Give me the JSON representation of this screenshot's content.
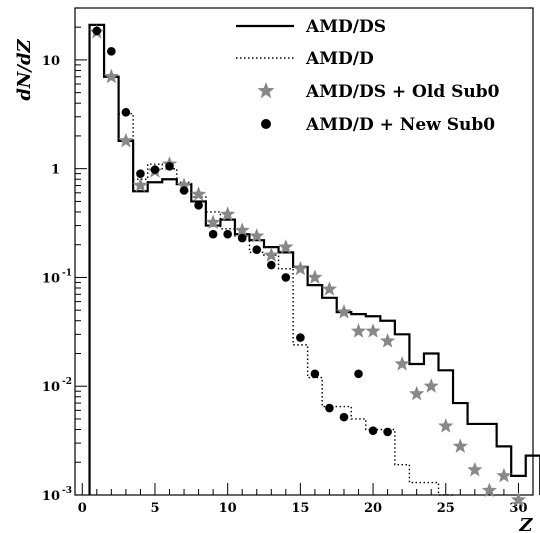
{
  "chart_data": {
    "type": "step-and-scatter",
    "title": "",
    "xlabel": "Z",
    "ylabel": "dN/dZ",
    "log_y": true,
    "xlim": [
      -0.5,
      31
    ],
    "ylim": [
      0.001,
      30
    ],
    "x_ticks": [
      0,
      5,
      10,
      15,
      20,
      25,
      30
    ],
    "y_ticks": [
      {
        "value": 0.001,
        "base": "10",
        "exp": "-3"
      },
      {
        "value": 0.01,
        "base": "10",
        "exp": "-2"
      },
      {
        "value": 0.1,
        "base": "10",
        "exp": "-1"
      },
      {
        "value": 1,
        "base": "1",
        "exp": ""
      },
      {
        "value": 10,
        "base": "10",
        "exp": ""
      }
    ],
    "legend_position": "top-right",
    "series": [
      {
        "name": "AMD/DS",
        "kind": "step-solid",
        "color": "#000000",
        "bins": [
          [
            0.5,
            21
          ],
          [
            1.5,
            7
          ],
          [
            2.5,
            1.8
          ],
          [
            3.5,
            0.62
          ],
          [
            4.5,
            0.75
          ],
          [
            5.5,
            0.8
          ],
          [
            6.5,
            0.72
          ],
          [
            7.5,
            0.5
          ],
          [
            8.5,
            0.3
          ],
          [
            9.5,
            0.34
          ],
          [
            10.5,
            0.25
          ],
          [
            11.5,
            0.22
          ],
          [
            12.5,
            0.19
          ],
          [
            13.5,
            0.17
          ],
          [
            14.5,
            0.125
          ],
          [
            15.5,
            0.085
          ],
          [
            16.5,
            0.065
          ],
          [
            17.5,
            0.048
          ],
          [
            18.5,
            0.046
          ],
          [
            19.5,
            0.044
          ],
          [
            20.5,
            0.04
          ],
          [
            21.5,
            0.03
          ],
          [
            22.5,
            0.016
          ],
          [
            23.5,
            0.02
          ],
          [
            24.5,
            0.014
          ],
          [
            25.5,
            0.007
          ],
          [
            26.5,
            0.0045
          ],
          [
            27.5,
            0.0045
          ],
          [
            28.5,
            0.0028
          ],
          [
            29.5,
            0.0015
          ],
          [
            30.5,
            0.0023
          ]
        ]
      },
      {
        "name": "AMD/D",
        "kind": "step-dotted",
        "color": "#000000",
        "bins": [
          [
            0.5,
            21
          ],
          [
            1.5,
            7
          ],
          [
            2.5,
            3.2
          ],
          [
            3.5,
            0.8
          ],
          [
            4.5,
            1.1
          ],
          [
            5.5,
            1.0
          ],
          [
            6.5,
            0.75
          ],
          [
            7.5,
            0.55
          ],
          [
            8.5,
            0.4
          ],
          [
            9.5,
            0.28
          ],
          [
            10.5,
            0.24
          ],
          [
            11.5,
            0.17
          ],
          [
            12.5,
            0.16
          ],
          [
            13.5,
            0.12
          ],
          [
            14.5,
            0.024
          ],
          [
            15.5,
            0.012
          ],
          [
            16.5,
            0.0065
          ],
          [
            17.5,
            0.0065
          ],
          [
            18.5,
            0.005
          ],
          [
            19.5,
            0.004
          ],
          [
            20.5,
            0.004
          ],
          [
            21.5,
            0.0019
          ],
          [
            22.5,
            0.0013
          ],
          [
            23.5,
            0.0013
          ],
          [
            24.5,
            0.001
          ]
        ]
      },
      {
        "name": "AMD/DS + Old Sub0",
        "kind": "marker-star",
        "color": "#888888",
        "points": [
          [
            1,
            18
          ],
          [
            2,
            7
          ],
          [
            3,
            1.8
          ],
          [
            4,
            0.7
          ],
          [
            5,
            0.95
          ],
          [
            6,
            1.1
          ],
          [
            7,
            0.7
          ],
          [
            8,
            0.58
          ],
          [
            9,
            0.32
          ],
          [
            10,
            0.38
          ],
          [
            11,
            0.27
          ],
          [
            12,
            0.24
          ],
          [
            13,
            0.16
          ],
          [
            14,
            0.19
          ],
          [
            15,
            0.12
          ],
          [
            16,
            0.1
          ],
          [
            17,
            0.078
          ],
          [
            18,
            0.048
          ],
          [
            19,
            0.032
          ],
          [
            20,
            0.032
          ],
          [
            21,
            0.026
          ],
          [
            22,
            0.016
          ],
          [
            23,
            0.0085
          ],
          [
            24,
            0.01
          ],
          [
            25,
            0.0043
          ],
          [
            26,
            0.0028
          ],
          [
            27,
            0.0017
          ],
          [
            28,
            0.0011
          ],
          [
            29,
            0.0015
          ],
          [
            30,
            0.0009
          ]
        ]
      },
      {
        "name": "AMD/D + New Sub0",
        "kind": "marker-circle",
        "color": "#000000",
        "points": [
          [
            1,
            18.5
          ],
          [
            2,
            12
          ],
          [
            3,
            3.3
          ],
          [
            4,
            0.9
          ],
          [
            5,
            0.98
          ],
          [
            6,
            1.05
          ],
          [
            7,
            0.63
          ],
          [
            8,
            0.46
          ],
          [
            9,
            0.25
          ],
          [
            10,
            0.25
          ],
          [
            11,
            0.23
          ],
          [
            12,
            0.18
          ],
          [
            13,
            0.13
          ],
          [
            14,
            0.1
          ],
          [
            15,
            0.028
          ],
          [
            16,
            0.013
          ],
          [
            17,
            0.0063
          ],
          [
            18,
            0.0052
          ],
          [
            19,
            0.013
          ],
          [
            20,
            0.0039
          ],
          [
            21,
            0.0038
          ]
        ]
      }
    ]
  }
}
